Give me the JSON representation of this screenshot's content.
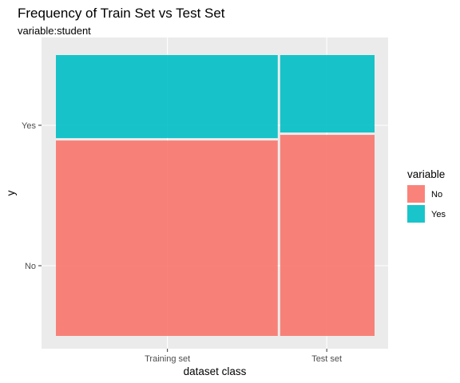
{
  "chart_data": {
    "type": "mosaic",
    "title": "Frequency of Train Set vs Test Set",
    "subtitle": "variable:student",
    "xlabel": "dataset class",
    "ylabel": "y",
    "categories": [
      "Training set",
      "Test set"
    ],
    "category_widths": [
      0.7,
      0.3
    ],
    "y_tick_labels": [
      "No",
      "Yes"
    ],
    "series": [
      {
        "name": "No",
        "color": "#F8766D",
        "values": [
          0.7,
          0.72
        ]
      },
      {
        "name": "Yes",
        "color": "#00BFC4",
        "values": [
          0.3,
          0.28
        ]
      }
    ],
    "legend": {
      "title": "variable",
      "position": "right"
    }
  }
}
